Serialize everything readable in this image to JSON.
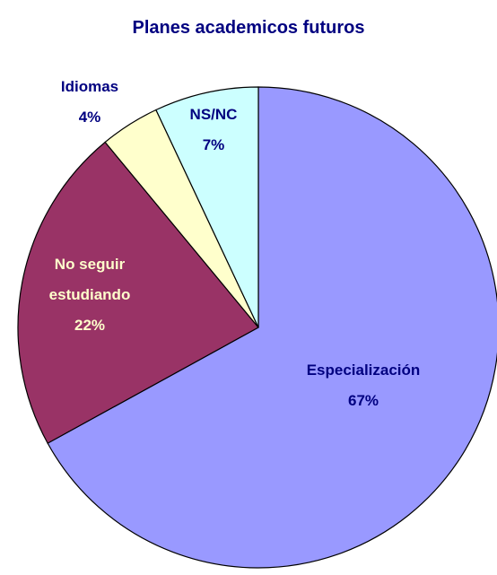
{
  "chart_data": {
    "type": "pie",
    "title": "Planes academicos futuros",
    "categories": [
      "Especialización",
      "No seguir estudiando",
      "Idiomas",
      "NS/NC"
    ],
    "values": [
      67,
      22,
      4,
      7
    ],
    "value_labels": [
      "67%",
      "22%",
      "4%",
      "7%"
    ],
    "colors": [
      "#9999ff",
      "#993366",
      "#ffffcc",
      "#ccffff"
    ],
    "label_colors": [
      "#000080",
      "#ffffcc",
      "#000080",
      "#000080"
    ]
  }
}
